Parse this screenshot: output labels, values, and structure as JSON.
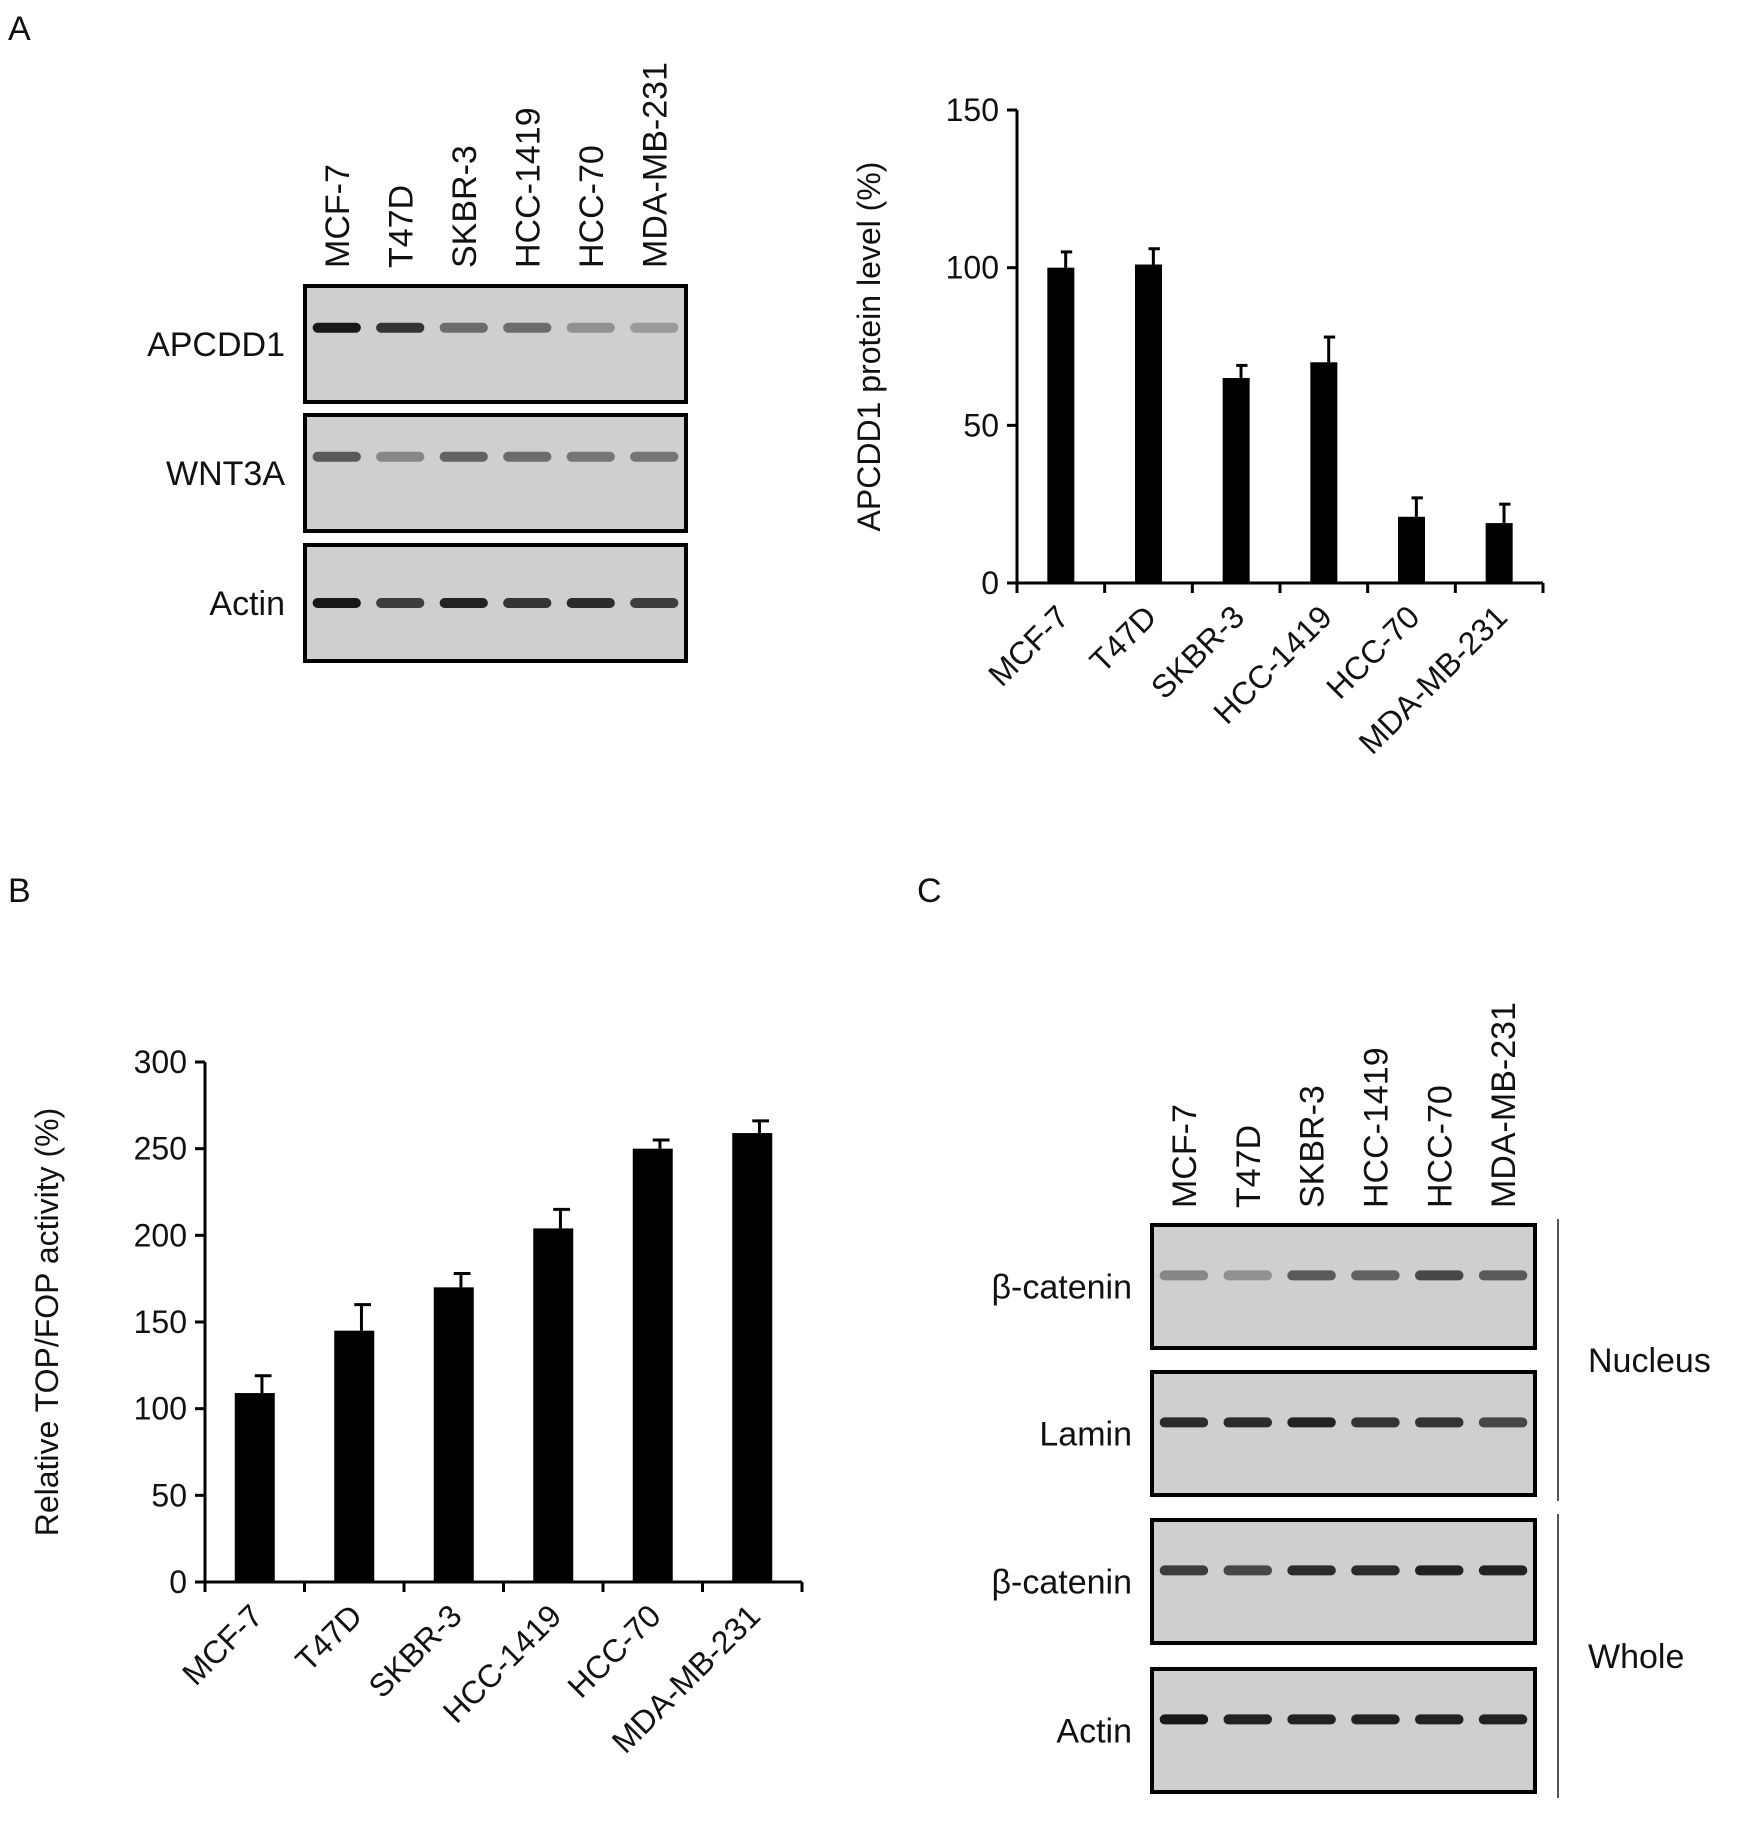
{
  "panels": {
    "A": {
      "letter": "A"
    },
    "B": {
      "letter": "B"
    },
    "C": {
      "letter": "C"
    }
  },
  "blot_a": {
    "lanes": [
      "MCF-7",
      "T47D",
      "SKBR-3",
      "HCC-1419",
      "HCC-70",
      "MDA-MB-231"
    ],
    "rows": [
      {
        "label": "APCDD1",
        "band_intensity": [
          0.95,
          0.8,
          0.5,
          0.5,
          0.3,
          0.25
        ]
      },
      {
        "label": "WNT3A",
        "band_intensity": [
          0.6,
          0.35,
          0.55,
          0.5,
          0.45,
          0.45
        ]
      },
      {
        "label": "Actin",
        "band_intensity": [
          0.95,
          0.75,
          0.9,
          0.8,
          0.85,
          0.75
        ]
      }
    ]
  },
  "blot_c": {
    "lanes": [
      "MCF-7",
      "T47D",
      "SKBR-3",
      "HCC-1419",
      "HCC-70",
      "MDA-MB-231"
    ],
    "rows": [
      {
        "label": "β-catenin",
        "band_intensity": [
          0.35,
          0.3,
          0.6,
          0.55,
          0.7,
          0.6
        ]
      },
      {
        "label": "Lamin",
        "band_intensity": [
          0.85,
          0.85,
          0.9,
          0.8,
          0.8,
          0.7
        ]
      },
      {
        "label": "β-catenin",
        "band_intensity": [
          0.75,
          0.7,
          0.85,
          0.85,
          0.9,
          0.9
        ]
      },
      {
        "label": "Actin",
        "band_intensity": [
          0.95,
          0.9,
          0.9,
          0.9,
          0.9,
          0.9
        ]
      }
    ],
    "groups": [
      {
        "label": "Nucleus",
        "row_span": [
          0,
          1
        ]
      },
      {
        "label": "Whole",
        "row_span": [
          2,
          3
        ]
      }
    ]
  },
  "chart_data": [
    {
      "panel": "A",
      "type": "bar",
      "categories": [
        "MCF-7",
        "T47D",
        "SKBR-3",
        "HCC-1419",
        "HCC-70",
        "MDA-MB-231"
      ],
      "values": [
        100,
        101,
        65,
        70,
        21,
        19
      ],
      "errors": [
        5,
        5,
        4,
        8,
        6,
        6
      ],
      "xlabel": "",
      "ylabel": "APCDD1 protein level (%)",
      "ylim": [
        0,
        150
      ],
      "yticks": [
        0,
        50,
        100,
        150
      ],
      "color": "#000000"
    },
    {
      "panel": "B",
      "type": "bar",
      "categories": [
        "MCF-7",
        "T47D",
        "SKBR-3",
        "HCC-1419",
        "HCC-70",
        "MDA-MB-231"
      ],
      "values": [
        109,
        145,
        170,
        204,
        250,
        259
      ],
      "errors": [
        10,
        15,
        8,
        11,
        5,
        7
      ],
      "xlabel": "",
      "ylabel": "Relative TOP/FOP activity (%)",
      "ylim": [
        0,
        300
      ],
      "yticks": [
        0,
        50,
        100,
        150,
        200,
        250,
        300
      ],
      "color": "#000000"
    }
  ]
}
